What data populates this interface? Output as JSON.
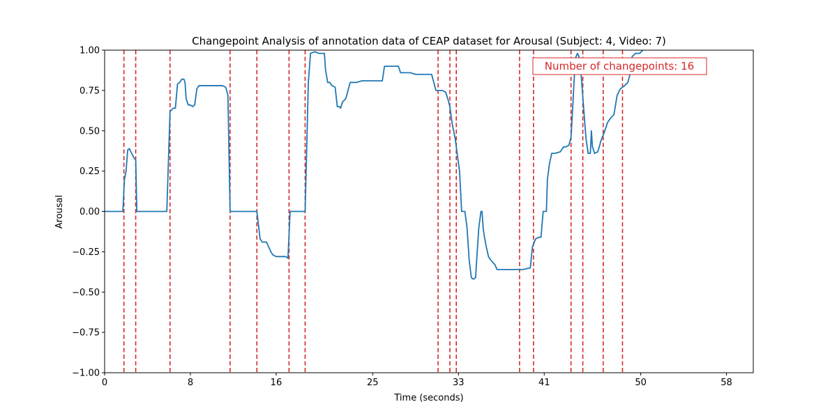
{
  "chart_data": {
    "type": "line",
    "title": "Changepoint Analysis of annotation data of CEAP dataset for Arousal (Subject: 4, Video: 7)",
    "xlabel": "Time (seconds)",
    "ylabel": "Arousal",
    "xlim": [
      0,
      60.5
    ],
    "ylim": [
      -1.0,
      1.0
    ],
    "x_ticks": [
      0,
      8,
      16,
      25,
      33,
      41,
      50,
      58
    ],
    "x_tick_labels": [
      "0",
      "8",
      "16",
      "25",
      "33",
      "41",
      "50",
      "58"
    ],
    "y_ticks": [
      1.0,
      0.75,
      0.5,
      0.25,
      0.0,
      -0.25,
      -0.5,
      -0.75,
      -1.0
    ],
    "y_tick_labels": [
      "1.00",
      "0.75",
      "0.50",
      "0.25",
      "0.00",
      "−0.25",
      "−0.50",
      "−0.75",
      "−1.00"
    ],
    "grid": false,
    "series": [
      {
        "color": "#1f77b4",
        "points": [
          [
            0,
            0
          ],
          [
            1.7,
            0
          ],
          [
            1.85,
            0.2
          ],
          [
            2.0,
            0.25
          ],
          [
            2.15,
            0.38
          ],
          [
            2.3,
            0.39
          ],
          [
            2.45,
            0.37
          ],
          [
            2.6,
            0.35
          ],
          [
            2.75,
            0.33
          ],
          [
            2.9,
            0.32
          ],
          [
            3.0,
            0
          ],
          [
            5.8,
            0
          ],
          [
            6.1,
            0.62
          ],
          [
            6.4,
            0.64
          ],
          [
            6.6,
            0.64
          ],
          [
            6.8,
            0.79
          ],
          [
            7.0,
            0.8
          ],
          [
            7.2,
            0.82
          ],
          [
            7.4,
            0.82
          ],
          [
            7.5,
            0.8
          ],
          [
            7.6,
            0.7
          ],
          [
            7.8,
            0.66
          ],
          [
            8.0,
            0.66
          ],
          [
            8.2,
            0.65
          ],
          [
            8.4,
            0.66
          ],
          [
            8.6,
            0.76
          ],
          [
            8.8,
            0.78
          ],
          [
            9.5,
            0.78
          ],
          [
            10.5,
            0.78
          ],
          [
            11.0,
            0.78
          ],
          [
            11.3,
            0.77
          ],
          [
            11.5,
            0.72
          ],
          [
            11.7,
            0
          ],
          [
            14.2,
            0
          ],
          [
            14.5,
            -0.17
          ],
          [
            14.7,
            -0.19
          ],
          [
            15.1,
            -0.19
          ],
          [
            15.3,
            -0.22
          ],
          [
            15.5,
            -0.25
          ],
          [
            15.7,
            -0.27
          ],
          [
            16.0,
            -0.28
          ],
          [
            16.5,
            -0.28
          ],
          [
            16.9,
            -0.28
          ],
          [
            17.1,
            -0.29
          ],
          [
            17.3,
            0
          ],
          [
            18.7,
            0
          ],
          [
            19.0,
            0.8
          ],
          [
            19.2,
            0.98
          ],
          [
            19.6,
            0.99
          ],
          [
            20.0,
            0.98
          ],
          [
            20.5,
            0.98
          ],
          [
            20.6,
            0.88
          ],
          [
            20.8,
            0.8
          ],
          [
            21.0,
            0.8
          ],
          [
            21.2,
            0.78
          ],
          [
            21.5,
            0.77
          ],
          [
            21.7,
            0.65
          ],
          [
            21.9,
            0.65
          ],
          [
            22.0,
            0.64
          ],
          [
            22.2,
            0.68
          ],
          [
            22.5,
            0.7
          ],
          [
            22.7,
            0.75
          ],
          [
            22.9,
            0.8
          ],
          [
            23.5,
            0.8
          ],
          [
            24.0,
            0.81
          ],
          [
            25.0,
            0.81
          ],
          [
            25.9,
            0.81
          ],
          [
            26.1,
            0.9
          ],
          [
            27.4,
            0.9
          ],
          [
            27.6,
            0.86
          ],
          [
            28.5,
            0.86
          ],
          [
            29.0,
            0.85
          ],
          [
            30.5,
            0.85
          ],
          [
            30.7,
            0.8
          ],
          [
            30.9,
            0.75
          ],
          [
            31.5,
            0.75
          ],
          [
            31.8,
            0.74
          ],
          [
            32.0,
            0.7
          ],
          [
            32.2,
            0.65
          ],
          [
            32.4,
            0.55
          ],
          [
            32.7,
            0.45
          ],
          [
            32.9,
            0.35
          ],
          [
            33.1,
            0.25
          ],
          [
            33.3,
            0.0
          ],
          [
            33.6,
            0.0
          ],
          [
            33.8,
            -0.1
          ],
          [
            34.0,
            -0.3
          ],
          [
            34.2,
            -0.41
          ],
          [
            34.4,
            -0.42
          ],
          [
            34.6,
            -0.41
          ],
          [
            34.7,
            -0.3
          ],
          [
            34.8,
            -0.2
          ],
          [
            34.9,
            -0.1
          ],
          [
            35.0,
            -0.05
          ],
          [
            35.1,
            0.0
          ],
          [
            35.2,
            0.0
          ],
          [
            35.3,
            -0.1
          ],
          [
            35.4,
            -0.15
          ],
          [
            35.6,
            -0.22
          ],
          [
            35.8,
            -0.28
          ],
          [
            36.0,
            -0.3
          ],
          [
            36.4,
            -0.33
          ],
          [
            36.6,
            -0.36
          ],
          [
            37.0,
            -0.36
          ],
          [
            38.0,
            -0.36
          ],
          [
            39.0,
            -0.36
          ],
          [
            39.7,
            -0.35
          ],
          [
            39.9,
            -0.22
          ],
          [
            40.2,
            -0.17
          ],
          [
            40.5,
            -0.16
          ],
          [
            40.7,
            -0.16
          ],
          [
            40.9,
            0.0
          ],
          [
            41.2,
            0.0
          ],
          [
            41.3,
            0.2
          ],
          [
            41.5,
            0.3
          ],
          [
            41.7,
            0.36
          ],
          [
            42.0,
            0.36
          ],
          [
            42.5,
            0.37
          ],
          [
            42.8,
            0.4
          ],
          [
            43.0,
            0.4
          ],
          [
            43.3,
            0.41
          ],
          [
            43.5,
            0.46
          ],
          [
            43.7,
            0.7
          ],
          [
            43.9,
            0.95
          ],
          [
            44.1,
            0.98
          ],
          [
            44.3,
            0.95
          ],
          [
            44.5,
            0.8
          ],
          [
            44.7,
            0.62
          ],
          [
            44.9,
            0.45
          ],
          [
            45.1,
            0.36
          ],
          [
            45.3,
            0.36
          ],
          [
            45.4,
            0.5
          ],
          [
            45.5,
            0.4
          ],
          [
            45.7,
            0.36
          ],
          [
            46.0,
            0.37
          ],
          [
            46.3,
            0.44
          ],
          [
            46.6,
            0.49
          ],
          [
            46.9,
            0.55
          ],
          [
            47.2,
            0.58
          ],
          [
            47.5,
            0.6
          ],
          [
            47.8,
            0.72
          ],
          [
            48.1,
            0.76
          ],
          [
            48.5,
            0.78
          ],
          [
            48.8,
            0.8
          ],
          [
            49.0,
            0.85
          ],
          [
            49.2,
            0.96
          ],
          [
            49.5,
            0.98
          ],
          [
            49.9,
            0.98
          ],
          [
            50.2,
            1.0
          ]
        ]
      }
    ],
    "changepoints": {
      "color": "#d62728",
      "style": "dashed",
      "x": [
        1.8,
        2.9,
        6.1,
        11.7,
        14.2,
        17.2,
        18.7,
        31.1,
        32.2,
        32.8,
        38.7,
        40.0,
        43.5,
        44.6,
        46.5,
        48.3
      ]
    },
    "annotation": {
      "text": "Number of changepoints: 16",
      "color": "#d62728",
      "placement": "top-right"
    }
  }
}
